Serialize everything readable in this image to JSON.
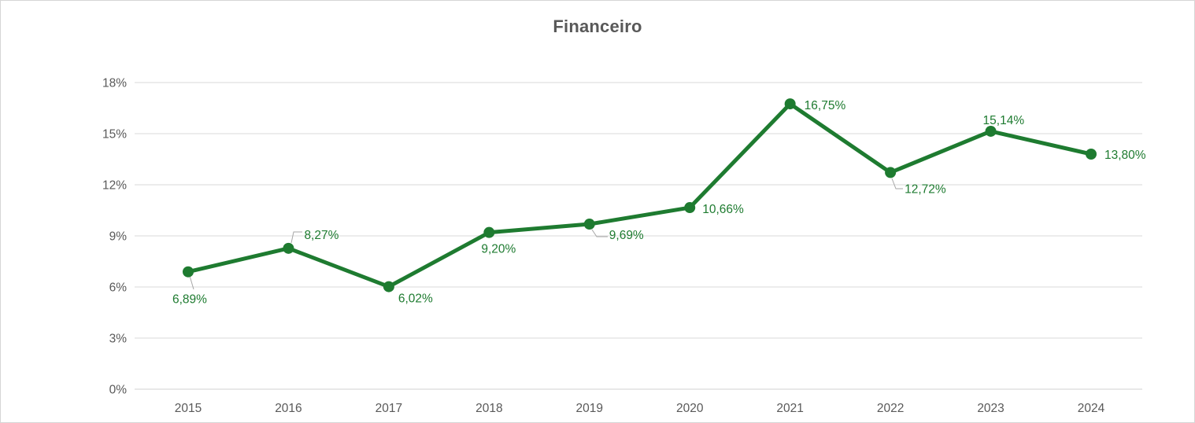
{
  "page": {
    "background": "#ffffff",
    "frame_border_color": "#d6d6d6"
  },
  "chart_data": {
    "type": "line",
    "title": "Financeiro",
    "categories": [
      "2015",
      "2016",
      "2017",
      "2018",
      "2019",
      "2020",
      "2021",
      "2022",
      "2023",
      "2024"
    ],
    "series": [
      {
        "name": "Financeiro",
        "values": [
          6.89,
          8.27,
          6.02,
          9.2,
          9.69,
          10.66,
          16.75,
          12.72,
          15.14,
          13.8
        ],
        "data_labels": [
          "6,89%",
          "8,27%",
          "6,02%",
          "9,20%",
          "9,69%",
          "10,66%",
          "16,75%",
          "12,72%",
          "15,14%",
          "13,80%"
        ],
        "color": "#1e7b30"
      }
    ],
    "ylim": [
      0,
      18
    ],
    "ytick_values": [
      0,
      3,
      6,
      9,
      12,
      15,
      18
    ],
    "ytick_labels": [
      "0%",
      "3%",
      "6%",
      "9%",
      "12%",
      "15%",
      "18%"
    ],
    "xlabel": "",
    "ylabel": "",
    "grid": true,
    "legend": "none",
    "colors": {
      "series_line": "#1e7b30",
      "marker_fill": "#1e7b30",
      "data_label_text": "#1e7b30",
      "axis_text": "#595959",
      "title_text": "#595959",
      "gridline": "#d9d9d9",
      "axis_line": "#d0d0d0",
      "leader_line": "#a6a6a6"
    }
  }
}
